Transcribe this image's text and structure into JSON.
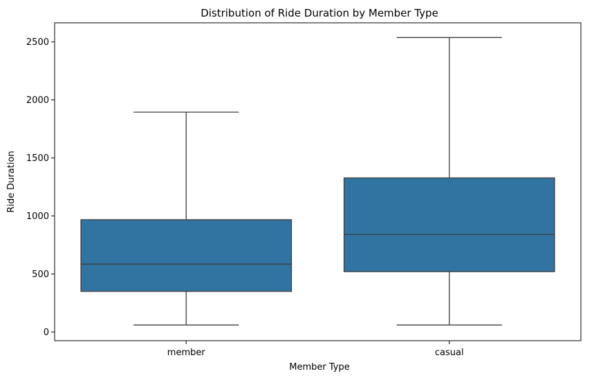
{
  "chart_data": {
    "type": "boxplot",
    "title": "Distribution of Ride Duration by Member Type",
    "xlabel": "Member Type",
    "ylabel": "Ride Duration",
    "categories": [
      "member",
      "casual"
    ],
    "boxes": [
      {
        "category": "member",
        "whisker_low": 60,
        "q1": 350,
        "median": 585,
        "q3": 968,
        "whisker_high": 1895
      },
      {
        "category": "casual",
        "whisker_low": 60,
        "q1": 520,
        "median": 840,
        "q3": 1328,
        "whisker_high": 2538
      }
    ],
    "yticks": [
      0,
      500,
      1000,
      1500,
      2000,
      2500
    ],
    "ylim": [
      -75,
      2665
    ],
    "grid": false,
    "colors": {
      "box_fill": "#3274a1",
      "line": "#3d3d3d"
    }
  }
}
